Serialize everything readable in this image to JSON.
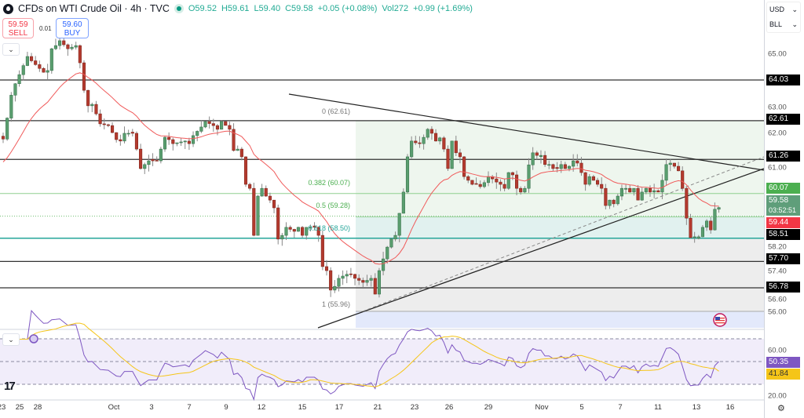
{
  "header": {
    "title": "CFDs on WTI Crude Oil · 4h · TVC",
    "open": "O59.52",
    "high": "H59.61",
    "low": "L59.40",
    "close": "C59.58",
    "change": "+0.05 (+0.08%)",
    "volume": "Vol272",
    "vol_change": "+0.99 (+1.69%)"
  },
  "trade": {
    "sell_price": "59.59",
    "sell_label": "SELL",
    "spread": "0.01",
    "buy_price": "59.60",
    "buy_label": "BUY"
  },
  "axis": {
    "currency": "USD",
    "unit": "BLL",
    "price_ticks": [
      "65.00",
      "63.00",
      "62.00",
      "61.00",
      "58.20",
      "57.40",
      "56.60",
      "56.00"
    ],
    "rsi_ticks": [
      "60.00",
      "20.00"
    ],
    "badges": {
      "l1": "64.03",
      "l2": "62.61",
      "l3": "61.26",
      "fib382": "60.07",
      "last": "59.58",
      "countdown": "03:52:51",
      "ema": "59.44",
      "l4": "58.51",
      "l5": "57.70",
      "l6": "56.78",
      "rsi": "50.35",
      "rsi_ma": "41.84"
    },
    "time_labels": [
      "23",
      "25",
      "28",
      "Oct",
      "3",
      "7",
      "9",
      "12",
      "15",
      "17",
      "21",
      "23",
      "26",
      "29",
      "Nov",
      "5",
      "7",
      "11",
      "13",
      "16"
    ]
  },
  "fib": {
    "l0": "0 (62.61)",
    "l382": "0.382 (60.07)",
    "l5": "0.5 (59.28)",
    "l618": "0.618 (58.50)",
    "l1": "1 (55.96)"
  },
  "colors": {
    "up": "#5a9e6f",
    "down": "#b33a2e",
    "ema": "#f05a5a",
    "rsi": "#7e57c2",
    "rsi_ma": "#f5c518",
    "fib_green": "#4caf50",
    "teal": "#26a69a",
    "last_price": "#5f9e7a",
    "ema_badge": "#f23645"
  },
  "chart_data": {
    "type": "candlestick",
    "symbol": "CFDs on WTI Crude Oil",
    "timeframe": "4h",
    "horizontal_levels": [
      64.03,
      62.61,
      61.26,
      58.51,
      57.7,
      56.78
    ],
    "fib_levels": {
      "0": 62.61,
      "0.382": 60.07,
      "0.5": 59.28,
      "0.618": 58.5,
      "1": 55.96
    },
    "last_candle": {
      "open": 59.52,
      "high": 59.61,
      "low": 59.4,
      "close": 59.58
    },
    "close_waypoints": [
      [
        0,
        61.97
      ],
      [
        1,
        62.7
      ],
      [
        2,
        63.5
      ],
      [
        3,
        63.9
      ],
      [
        6,
        64.85
      ],
      [
        7,
        64.7
      ],
      [
        10,
        64.3
      ],
      [
        11,
        64.36
      ],
      [
        12,
        65.12
      ],
      [
        13,
        65.23
      ],
      [
        14,
        65.4
      ],
      [
        16,
        65.12
      ],
      [
        18,
        65.23
      ],
      [
        19,
        64.63
      ],
      [
        20,
        63.67
      ],
      [
        21,
        63.13
      ],
      [
        22,
        63.18
      ],
      [
        23,
        62.85
      ],
      [
        24,
        62.5
      ],
      [
        26,
        62.44
      ],
      [
        28,
        61.95
      ],
      [
        29,
        61.9
      ],
      [
        30,
        62.17
      ],
      [
        32,
        62.17
      ],
      [
        33,
        61.62
      ],
      [
        34,
        60.94
      ],
      [
        35,
        61.08
      ],
      [
        36,
        61.21
      ],
      [
        38,
        61.21
      ],
      [
        39,
        61.62
      ],
      [
        40,
        62.03
      ],
      [
        41,
        61.95
      ],
      [
        42,
        61.81
      ],
      [
        45,
        61.9
      ],
      [
        46,
        61.81
      ],
      [
        47,
        62.09
      ],
      [
        49,
        62.39
      ],
      [
        50,
        62.58
      ],
      [
        52,
        62.44
      ],
      [
        53,
        62.31
      ],
      [
        54,
        62.58
      ],
      [
        56,
        62.31
      ],
      [
        57,
        61.57
      ],
      [
        58,
        61.62
      ],
      [
        59,
        61.35
      ],
      [
        60,
        60.39
      ],
      [
        61,
        60.25
      ],
      [
        62,
        58.61
      ],
      [
        63,
        59.98
      ],
      [
        64,
        60.25
      ],
      [
        65,
        59.98
      ],
      [
        66,
        59.84
      ],
      [
        67,
        59.57
      ],
      [
        68,
        58.48
      ],
      [
        69,
        58.61
      ],
      [
        70,
        58.89
      ],
      [
        72,
        58.75
      ],
      [
        73,
        58.89
      ],
      [
        74,
        58.61
      ],
      [
        75,
        58.89
      ],
      [
        77,
        58.89
      ],
      [
        78,
        58.61
      ],
      [
        79,
        57.52
      ],
      [
        80,
        57.38
      ],
      [
        81,
        56.7
      ],
      [
        82,
        56.83
      ],
      [
        83,
        57.11
      ],
      [
        84,
        57.19
      ],
      [
        85,
        57.25
      ],
      [
        86,
        57.25
      ],
      [
        87,
        57.11
      ],
      [
        89,
        56.97
      ],
      [
        91,
        57.11
      ],
      [
        92,
        56.56
      ],
      [
        93,
        57.38
      ],
      [
        94,
        57.79
      ],
      [
        95,
        58.2
      ],
      [
        96,
        58.48
      ],
      [
        97,
        58.61
      ],
      [
        98,
        59.38
      ],
      [
        99,
        60.12
      ],
      [
        100,
        61.35
      ],
      [
        101,
        61.9
      ],
      [
        102,
        61.84
      ],
      [
        103,
        61.81
      ],
      [
        104,
        62.03
      ],
      [
        105,
        62.31
      ],
      [
        106,
        62.17
      ],
      [
        107,
        61.9
      ],
      [
        108,
        62.01
      ],
      [
        109,
        61.62
      ],
      [
        110,
        60.94
      ],
      [
        111,
        61.9
      ],
      [
        112,
        61.49
      ],
      [
        113,
        61.35
      ],
      [
        114,
        60.66
      ],
      [
        115,
        60.53
      ],
      [
        116,
        60.39
      ],
      [
        117,
        60.39
      ],
      [
        118,
        60.31
      ],
      [
        119,
        60.45
      ],
      [
        120,
        60.66
      ],
      [
        121,
        60.58
      ],
      [
        122,
        60.47
      ],
      [
        123,
        60.39
      ],
      [
        124,
        60.25
      ],
      [
        125,
        60.8
      ],
      [
        126,
        60.72
      ],
      [
        127,
        60.25
      ],
      [
        128,
        60.12
      ],
      [
        129,
        60.25
      ],
      [
        130,
        61.07
      ],
      [
        131,
        61.49
      ],
      [
        132,
        61.4
      ],
      [
        133,
        61.4
      ],
      [
        134,
        61.08
      ],
      [
        135,
        61.08
      ],
      [
        136,
        60.94
      ],
      [
        137,
        60.94
      ],
      [
        138,
        61.08
      ],
      [
        139,
        60.94
      ],
      [
        140,
        61.02
      ],
      [
        141,
        61.21
      ],
      [
        142,
        61.13
      ],
      [
        143,
        60.8
      ],
      [
        144,
        60.39
      ],
      [
        145,
        60.66
      ],
      [
        146,
        60.53
      ],
      [
        147,
        60.39
      ],
      [
        148,
        60.25
      ],
      [
        149,
        59.65
      ],
      [
        150,
        59.84
      ],
      [
        151,
        59.71
      ],
      [
        152,
        59.98
      ],
      [
        153,
        60.25
      ],
      [
        154,
        60.25
      ],
      [
        155,
        60.12
      ],
      [
        156,
        60.25
      ],
      [
        157,
        59.84
      ],
      [
        158,
        60.12
      ],
      [
        159,
        60.25
      ],
      [
        160,
        60.12
      ],
      [
        161,
        60.17
      ],
      [
        162,
        60.12
      ],
      [
        163,
        60.53
      ],
      [
        164,
        61.08
      ],
      [
        165,
        61.13
      ],
      [
        166,
        61.02
      ],
      [
        167,
        60.86
      ],
      [
        168,
        60.25
      ],
      [
        169,
        59.21
      ],
      [
        170,
        58.53
      ],
      [
        171,
        58.56
      ],
      [
        172,
        58.56
      ],
      [
        173,
        58.89
      ],
      [
        174,
        59.11
      ],
      [
        175,
        58.8
      ],
      [
        176,
        59.52
      ],
      [
        177,
        59.58
      ]
    ],
    "rsi": {
      "value": 50.35,
      "ma": 41.84,
      "bands": [
        70,
        50,
        30
      ]
    }
  }
}
